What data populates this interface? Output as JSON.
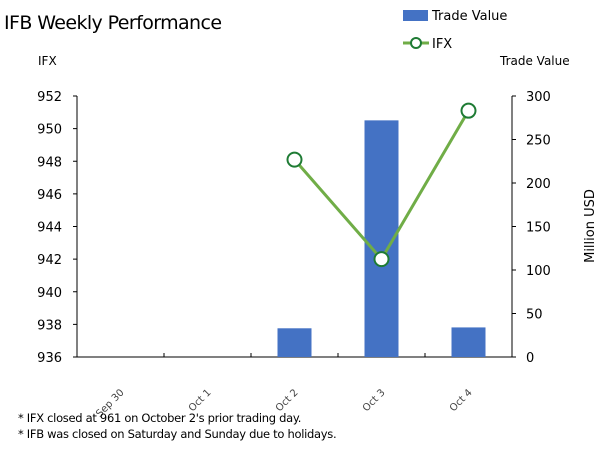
{
  "chart_data": {
    "type": "bar+line",
    "title": "IFB Weekly Performance",
    "categories": [
      "Sep 30",
      "Oct 1",
      "Oct 2",
      "Oct 3",
      "Oct 4"
    ],
    "series": [
      {
        "name": "Trade Value",
        "type": "bar",
        "axis": "right",
        "color": "#4472C4",
        "values": [
          null,
          null,
          33,
          272,
          34
        ]
      },
      {
        "name": "IFX",
        "type": "line",
        "axis": "left",
        "color": "#70AD47",
        "marker_color": "#1E7B34",
        "values": [
          null,
          null,
          948.1,
          942.0,
          951.1
        ]
      }
    ],
    "y_left": {
      "label": "IFX",
      "range": [
        936,
        952
      ],
      "ticks": [
        936,
        938,
        940,
        942,
        944,
        946,
        948,
        950,
        952
      ]
    },
    "y_right": {
      "label": "Trade Value",
      "unit_label": "Million USD",
      "range": [
        0,
        300
      ],
      "ticks": [
        0,
        50,
        100,
        150,
        200,
        250,
        300
      ]
    },
    "legend": {
      "placement": "top-right",
      "entries": [
        "Trade Value",
        "IFX"
      ]
    },
    "grid": false,
    "notes": [
      "* IFX closed at 961 on October 2's prior trading day.",
      "* IFB was closed on Saturday and Sunday due to holidays."
    ]
  }
}
